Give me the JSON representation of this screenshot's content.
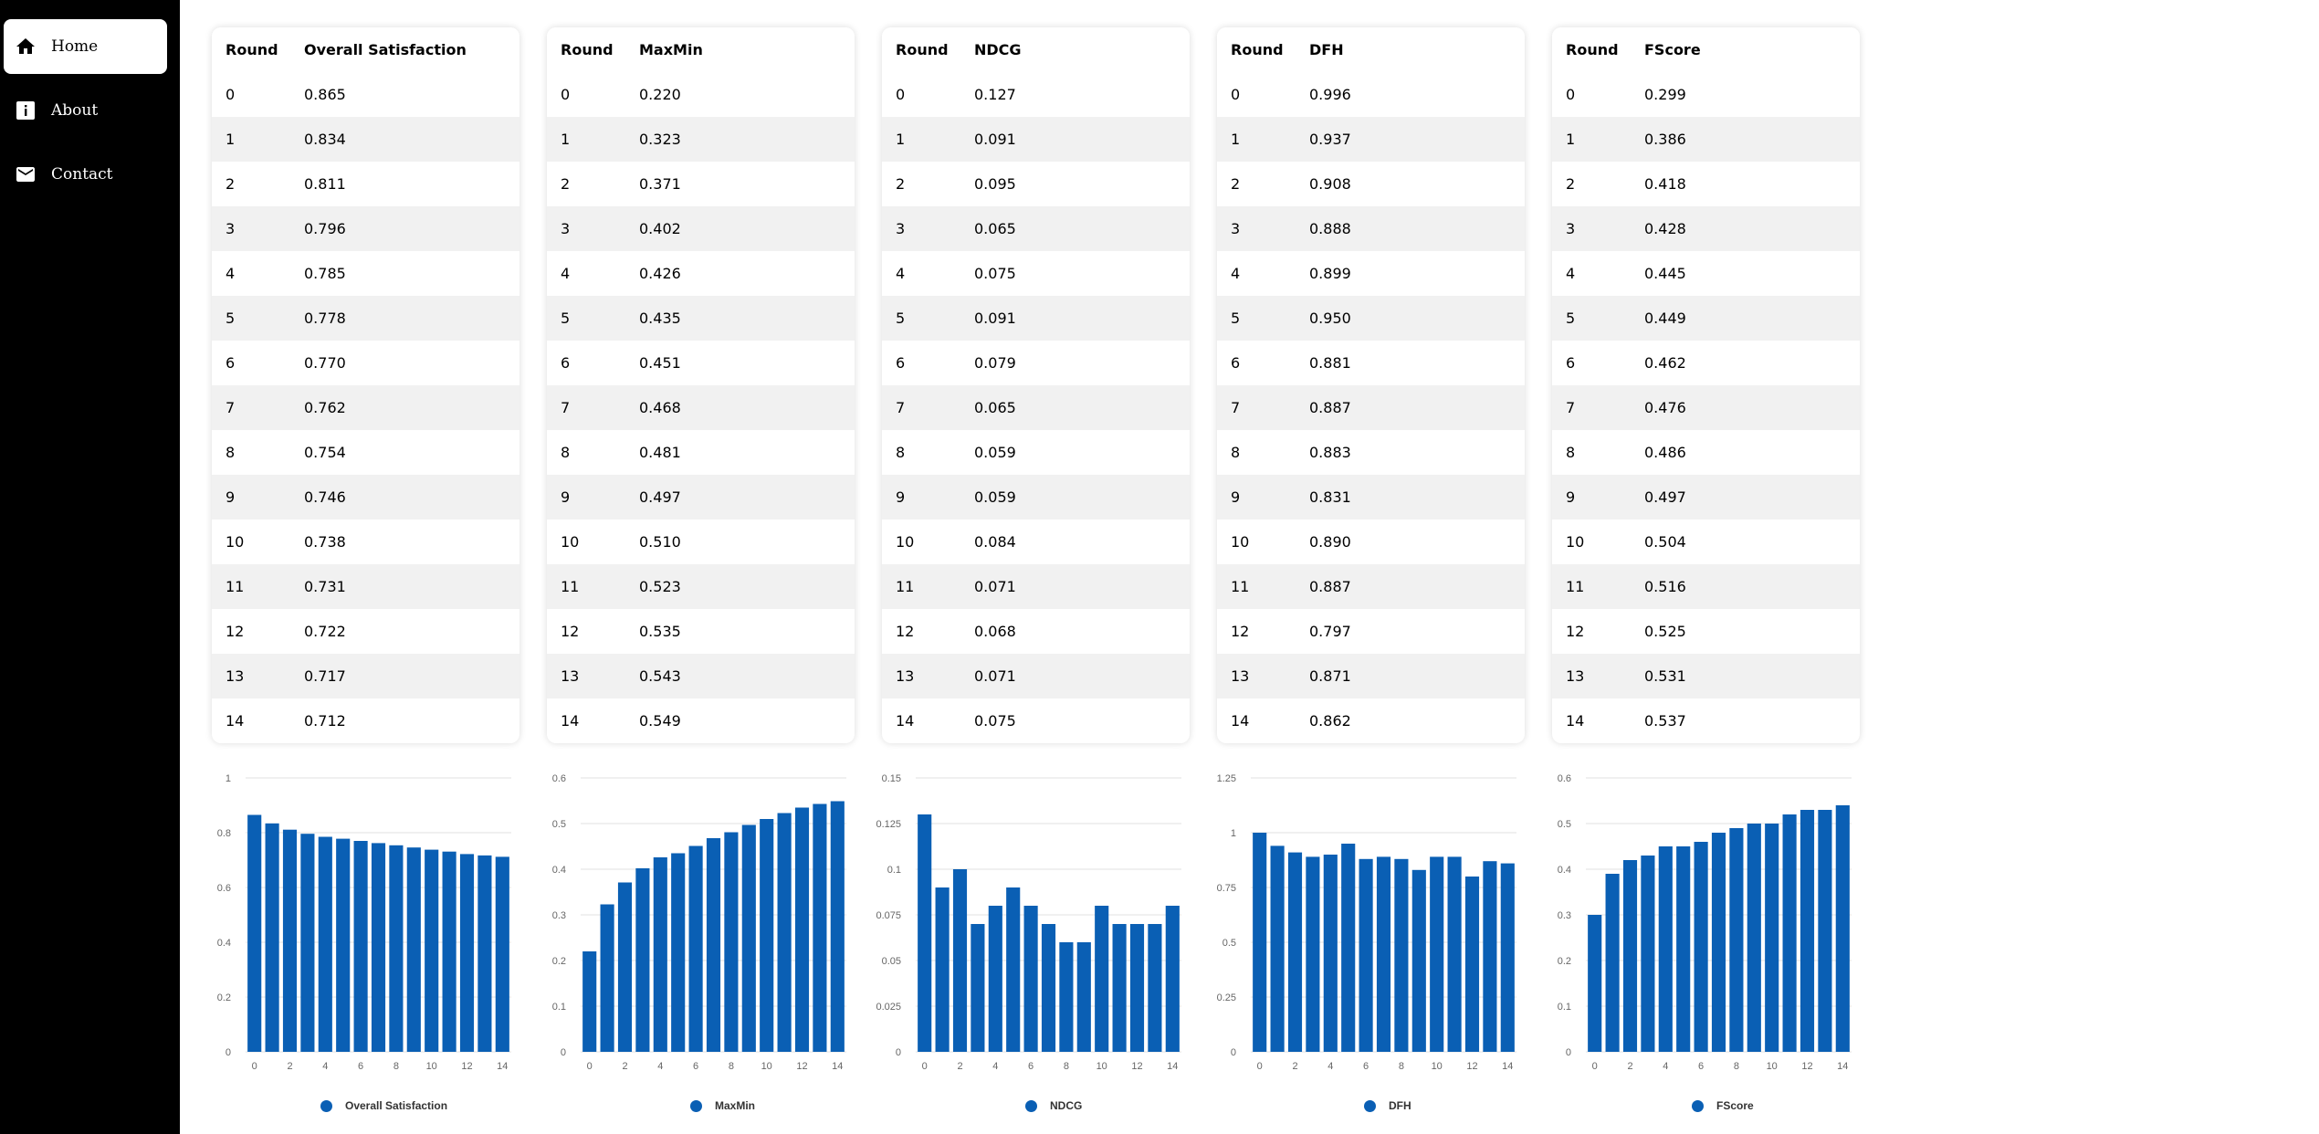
{
  "nav": {
    "items": [
      {
        "label": "Home",
        "icon": "home-icon",
        "active": true
      },
      {
        "label": "About",
        "icon": "info-icon",
        "active": false
      },
      {
        "label": "Contact",
        "icon": "mail-icon",
        "active": false
      }
    ]
  },
  "colors": {
    "sidebar": "#000000",
    "bar": "#0a5fb4",
    "row_alt": "#f1f1f1",
    "grid": "#e0e0e0"
  },
  "tables": [
    {
      "headers": [
        "Round",
        "Overall Satisfaction"
      ],
      "rows": [
        [
          "0",
          "0.865"
        ],
        [
          "1",
          "0.834"
        ],
        [
          "2",
          "0.811"
        ],
        [
          "3",
          "0.796"
        ],
        [
          "4",
          "0.785"
        ],
        [
          "5",
          "0.778"
        ],
        [
          "6",
          "0.770"
        ],
        [
          "7",
          "0.762"
        ],
        [
          "8",
          "0.754"
        ],
        [
          "9",
          "0.746"
        ],
        [
          "10",
          "0.738"
        ],
        [
          "11",
          "0.731"
        ],
        [
          "12",
          "0.722"
        ],
        [
          "13",
          "0.717"
        ],
        [
          "14",
          "0.712"
        ]
      ]
    },
    {
      "headers": [
        "Round",
        "MaxMin"
      ],
      "rows": [
        [
          "0",
          "0.220"
        ],
        [
          "1",
          "0.323"
        ],
        [
          "2",
          "0.371"
        ],
        [
          "3",
          "0.402"
        ],
        [
          "4",
          "0.426"
        ],
        [
          "5",
          "0.435"
        ],
        [
          "6",
          "0.451"
        ],
        [
          "7",
          "0.468"
        ],
        [
          "8",
          "0.481"
        ],
        [
          "9",
          "0.497"
        ],
        [
          "10",
          "0.510"
        ],
        [
          "11",
          "0.523"
        ],
        [
          "12",
          "0.535"
        ],
        [
          "13",
          "0.543"
        ],
        [
          "14",
          "0.549"
        ]
      ]
    },
    {
      "headers": [
        "Round",
        "NDCG"
      ],
      "rows": [
        [
          "0",
          "0.127"
        ],
        [
          "1",
          "0.091"
        ],
        [
          "2",
          "0.095"
        ],
        [
          "3",
          "0.065"
        ],
        [
          "4",
          "0.075"
        ],
        [
          "5",
          "0.091"
        ],
        [
          "6",
          "0.079"
        ],
        [
          "7",
          "0.065"
        ],
        [
          "8",
          "0.059"
        ],
        [
          "9",
          "0.059"
        ],
        [
          "10",
          "0.084"
        ],
        [
          "11",
          "0.071"
        ],
        [
          "12",
          "0.068"
        ],
        [
          "13",
          "0.071"
        ],
        [
          "14",
          "0.075"
        ]
      ]
    },
    {
      "headers": [
        "Round",
        "DFH"
      ],
      "rows": [
        [
          "0",
          "0.996"
        ],
        [
          "1",
          "0.937"
        ],
        [
          "2",
          "0.908"
        ],
        [
          "3",
          "0.888"
        ],
        [
          "4",
          "0.899"
        ],
        [
          "5",
          "0.950"
        ],
        [
          "6",
          "0.881"
        ],
        [
          "7",
          "0.887"
        ],
        [
          "8",
          "0.883"
        ],
        [
          "9",
          "0.831"
        ],
        [
          "10",
          "0.890"
        ],
        [
          "11",
          "0.887"
        ],
        [
          "12",
          "0.797"
        ],
        [
          "13",
          "0.871"
        ],
        [
          "14",
          "0.862"
        ]
      ]
    },
    {
      "headers": [
        "Round",
        "FScore"
      ],
      "rows": [
        [
          "0",
          "0.299"
        ],
        [
          "1",
          "0.386"
        ],
        [
          "2",
          "0.418"
        ],
        [
          "3",
          "0.428"
        ],
        [
          "4",
          "0.445"
        ],
        [
          "5",
          "0.449"
        ],
        [
          "6",
          "0.462"
        ],
        [
          "7",
          "0.476"
        ],
        [
          "8",
          "0.486"
        ],
        [
          "9",
          "0.497"
        ],
        [
          "10",
          "0.504"
        ],
        [
          "11",
          "0.516"
        ],
        [
          "12",
          "0.525"
        ],
        [
          "13",
          "0.531"
        ],
        [
          "14",
          "0.537"
        ]
      ]
    }
  ],
  "chart_data": [
    {
      "type": "bar",
      "x": [
        0,
        1,
        2,
        3,
        4,
        5,
        6,
        7,
        8,
        9,
        10,
        11,
        12,
        13,
        14
      ],
      "x_ticks": [
        "0",
        "2",
        "4",
        "6",
        "8",
        "10",
        "12",
        "14"
      ],
      "series": [
        {
          "name": "Overall Satisfaction",
          "values": [
            0.865,
            0.834,
            0.811,
            0.796,
            0.785,
            0.778,
            0.77,
            0.762,
            0.754,
            0.746,
            0.738,
            0.731,
            0.722,
            0.717,
            0.712
          ]
        }
      ],
      "ylim": [
        0,
        1
      ],
      "y_ticks": [
        "0",
        "0.2",
        "0.4",
        "0.6",
        "0.8",
        "1"
      ],
      "legend_position": "bottom",
      "grid": true
    },
    {
      "type": "bar",
      "x": [
        0,
        1,
        2,
        3,
        4,
        5,
        6,
        7,
        8,
        9,
        10,
        11,
        12,
        13,
        14
      ],
      "x_ticks": [
        "0",
        "2",
        "4",
        "6",
        "8",
        "10",
        "12",
        "14"
      ],
      "series": [
        {
          "name": "MaxMin",
          "values": [
            0.22,
            0.323,
            0.371,
            0.402,
            0.426,
            0.435,
            0.451,
            0.468,
            0.481,
            0.497,
            0.51,
            0.523,
            0.535,
            0.543,
            0.549
          ]
        }
      ],
      "ylim": [
        0,
        0.6
      ],
      "y_ticks": [
        "0",
        "0.1",
        "0.2",
        "0.3",
        "0.4",
        "0.5",
        "0.6"
      ],
      "legend_position": "bottom",
      "grid": true
    },
    {
      "type": "bar",
      "x": [
        0,
        1,
        2,
        3,
        4,
        5,
        6,
        7,
        8,
        9,
        10,
        11,
        12,
        13,
        14
      ],
      "x_ticks": [
        "0",
        "2",
        "4",
        "6",
        "8",
        "10",
        "12",
        "14"
      ],
      "series": [
        {
          "name": "NDCG",
          "values": [
            0.13,
            0.09,
            0.1,
            0.07,
            0.08,
            0.09,
            0.08,
            0.07,
            0.06,
            0.06,
            0.08,
            0.07,
            0.07,
            0.07,
            0.08
          ]
        }
      ],
      "ylim": [
        0,
        0.15
      ],
      "y_ticks": [
        "0",
        "0.025",
        "0.05",
        "0.075",
        "0.1",
        "0.125",
        "0.15"
      ],
      "legend_position": "bottom",
      "grid": true
    },
    {
      "type": "bar",
      "x": [
        0,
        1,
        2,
        3,
        4,
        5,
        6,
        7,
        8,
        9,
        10,
        11,
        12,
        13,
        14
      ],
      "x_ticks": [
        "0",
        "2",
        "4",
        "6",
        "8",
        "10",
        "12",
        "14"
      ],
      "series": [
        {
          "name": "DFH",
          "values": [
            1.0,
            0.94,
            0.91,
            0.89,
            0.9,
            0.95,
            0.88,
            0.89,
            0.88,
            0.83,
            0.89,
            0.89,
            0.8,
            0.87,
            0.86
          ]
        }
      ],
      "ylim": [
        0,
        1.25
      ],
      "y_ticks": [
        "0",
        "0.25",
        "0.5",
        "0.75",
        "1",
        "1.25"
      ],
      "legend_position": "bottom",
      "grid": true
    },
    {
      "type": "bar",
      "x": [
        0,
        1,
        2,
        3,
        4,
        5,
        6,
        7,
        8,
        9,
        10,
        11,
        12,
        13,
        14
      ],
      "x_ticks": [
        "0",
        "2",
        "4",
        "6",
        "8",
        "10",
        "12",
        "14"
      ],
      "series": [
        {
          "name": "FScore",
          "values": [
            0.3,
            0.39,
            0.42,
            0.43,
            0.45,
            0.45,
            0.46,
            0.48,
            0.49,
            0.5,
            0.5,
            0.52,
            0.53,
            0.53,
            0.54
          ]
        }
      ],
      "ylim": [
        0,
        0.6
      ],
      "y_ticks": [
        "0",
        "0.1",
        "0.2",
        "0.3",
        "0.4",
        "0.5",
        "0.6"
      ],
      "legend_position": "bottom",
      "grid": true
    }
  ]
}
